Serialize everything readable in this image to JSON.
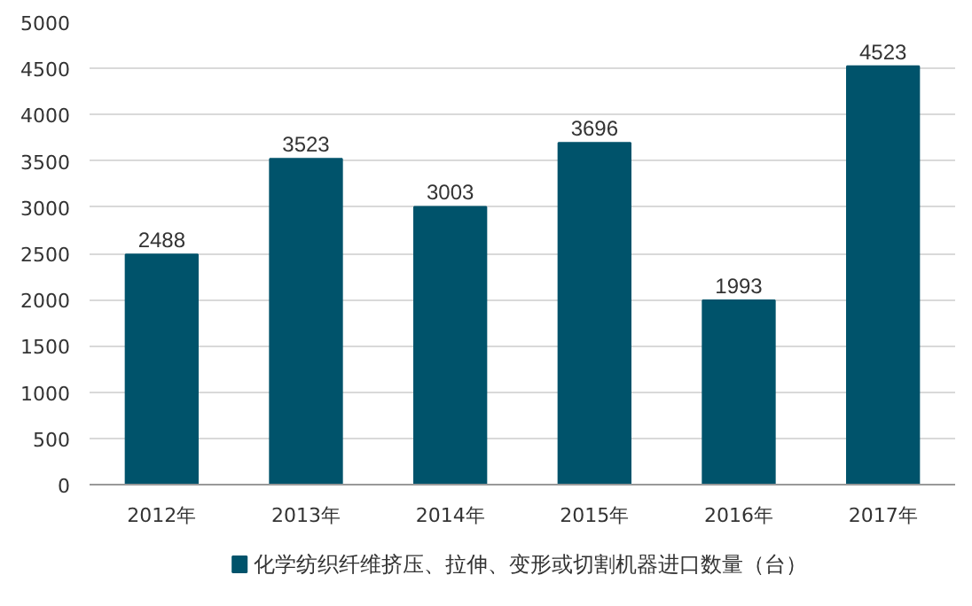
{
  "chart_data": {
    "type": "bar",
    "categories": [
      "2012年",
      "2013年",
      "2014年",
      "2015年",
      "2016年",
      "2017年"
    ],
    "series": [
      {
        "name": "化学纺织纤维挤压、拉伸、变形或切割机器进口数量（台）",
        "color": "#00536b",
        "values": [
          2488,
          3523,
          3003,
          3696,
          1993,
          4523
        ]
      }
    ],
    "ylim": [
      0,
      5000
    ],
    "yticks": [
      0,
      500,
      1000,
      1500,
      2000,
      2500,
      3000,
      3500,
      4000,
      4500,
      5000
    ],
    "grid": "y",
    "legend": "bottom",
    "data_labels": true
  }
}
